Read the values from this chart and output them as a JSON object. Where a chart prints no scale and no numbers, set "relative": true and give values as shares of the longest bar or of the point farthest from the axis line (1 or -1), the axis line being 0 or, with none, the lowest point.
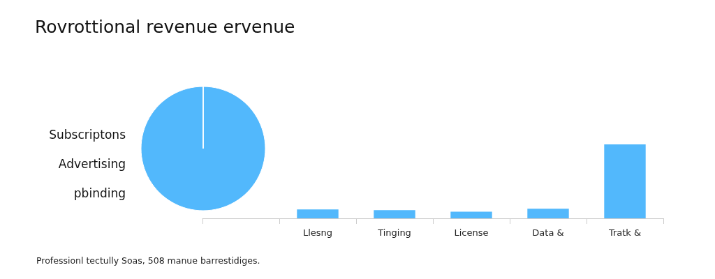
{
  "chart_data": [
    {
      "type": "pie",
      "title": "Rovrottional revenue ervenue",
      "categories": [
        "Subscriptons",
        "Advertising",
        "pbinding"
      ],
      "values": [
        100,
        0,
        0
      ],
      "colors": [
        "#52b8fc",
        "#52b8fc",
        "#52b8fc"
      ],
      "annotations": [
        "Professionl tectully Soas, 508 manue barrestidiges."
      ]
    },
    {
      "type": "bar",
      "relative": true,
      "categories": [
        null,
        "Llesng",
        "Tinging",
        "License",
        "Data &",
        "Tratk &"
      ],
      "values": [
        null,
        0.12,
        0.11,
        0.09,
        0.13,
        1
      ],
      "color": "#52b8fc"
    }
  ]
}
